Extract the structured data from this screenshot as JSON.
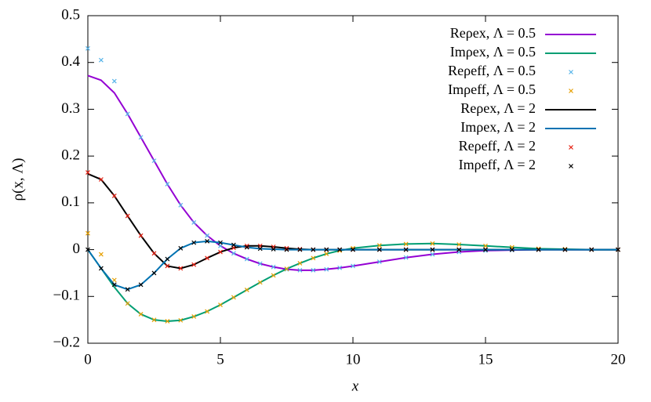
{
  "chart_data": {
    "type": "line",
    "xlabel": "x",
    "ylabel": "ρ(x, Λ)",
    "xlim": [
      0,
      20
    ],
    "ylim": [
      -0.2,
      0.5
    ],
    "xticks": [
      0,
      5,
      10,
      15,
      20
    ],
    "yticks": [
      {
        "value": -0.2,
        "label": "−0.2"
      },
      {
        "value": -0.1,
        "label": "−0.1"
      },
      0,
      0.1,
      0.2,
      0.3,
      0.4,
      0.5
    ],
    "legend": "top-right",
    "x": [
      0,
      0.5,
      1,
      1.5,
      2,
      2.5,
      3,
      3.5,
      4,
      4.5,
      5,
      5.5,
      6,
      6.5,
      7,
      7.5,
      8,
      8.5,
      9,
      9.5,
      10,
      11,
      12,
      13,
      14,
      15,
      16,
      17,
      18,
      19,
      20
    ],
    "series": [
      {
        "name": "Reρex, Λ = 0.5",
        "color": "#9400d3",
        "style": "line",
        "values": [
          0.372,
          0.362,
          0.335,
          0.29,
          0.24,
          0.19,
          0.14,
          0.095,
          0.058,
          0.03,
          0.008,
          -0.008,
          -0.02,
          -0.03,
          -0.037,
          -0.042,
          -0.044,
          -0.044,
          -0.042,
          -0.039,
          -0.035,
          -0.026,
          -0.017,
          -0.01,
          -0.005,
          -0.002,
          -0.001,
          0,
          0,
          0,
          0
        ]
      },
      {
        "name": "Imρex, Λ = 0.5",
        "color": "#009e73",
        "style": "line",
        "values": [
          0,
          -0.04,
          -0.08,
          -0.115,
          -0.138,
          -0.15,
          -0.153,
          -0.151,
          -0.143,
          -0.132,
          -0.118,
          -0.102,
          -0.086,
          -0.07,
          -0.055,
          -0.041,
          -0.029,
          -0.018,
          -0.009,
          -0.002,
          0.003,
          0.009,
          0.012,
          0.013,
          0.011,
          0.008,
          0.005,
          0.002,
          0.001,
          0,
          0
        ]
      },
      {
        "name": "Reρeff, Λ = 0.5",
        "color": "#56b4e9",
        "style": "points",
        "values": [
          0.43,
          0.405,
          0.36,
          0.29,
          0.24,
          0.19,
          0.14,
          0.095,
          0.058,
          0.03,
          0.008,
          -0.008,
          -0.02,
          -0.03,
          -0.037,
          -0.042,
          -0.044,
          -0.044,
          -0.042,
          -0.039,
          -0.035,
          -0.026,
          -0.017,
          -0.01,
          -0.005,
          -0.002,
          -0.001,
          0,
          0,
          0,
          0
        ]
      },
      {
        "name": "Imρeff, Λ = 0.5",
        "color": "#e69f00",
        "style": "points",
        "values": [
          0.035,
          -0.01,
          -0.065,
          -0.115,
          -0.138,
          -0.15,
          -0.153,
          -0.151,
          -0.143,
          -0.132,
          -0.118,
          -0.102,
          -0.086,
          -0.07,
          -0.055,
          -0.041,
          -0.029,
          -0.018,
          -0.009,
          -0.002,
          0.003,
          0.009,
          0.012,
          0.013,
          0.011,
          0.008,
          0.005,
          0.002,
          0.001,
          0,
          0
        ]
      },
      {
        "name": "Reρex, Λ = 2",
        "color": "#000000",
        "style": "line",
        "values": [
          0.162,
          0.15,
          0.115,
          0.072,
          0.03,
          -0.008,
          -0.035,
          -0.04,
          -0.032,
          -0.018,
          -0.005,
          0.004,
          0.008,
          0.008,
          0.006,
          0.003,
          0.001,
          0,
          0,
          0,
          0,
          0,
          0,
          0,
          0,
          0,
          0,
          0,
          0,
          0,
          0
        ]
      },
      {
        "name": "Imρex, Λ = 2",
        "color": "#0072b2",
        "style": "line",
        "values": [
          0,
          -0.04,
          -0.075,
          -0.085,
          -0.075,
          -0.05,
          -0.02,
          0.003,
          0.015,
          0.018,
          0.015,
          0.01,
          0.005,
          0.002,
          0.001,
          0,
          0,
          0,
          0,
          0,
          0,
          0,
          0,
          0,
          0,
          0,
          0,
          0,
          0,
          0,
          0
        ]
      },
      {
        "name": "Reρeff, Λ = 2",
        "color": "#e51e10",
        "style": "points",
        "values": [
          0.165,
          0.15,
          0.115,
          0.072,
          0.03,
          -0.008,
          -0.035,
          -0.04,
          -0.032,
          -0.018,
          -0.005,
          0.004,
          0.008,
          0.008,
          0.006,
          0.003,
          0.001,
          0,
          0,
          0,
          0,
          0,
          0,
          0,
          0,
          0,
          0,
          0,
          0,
          0,
          0
        ]
      },
      {
        "name": "Imρeff, Λ = 2",
        "color": "#000000",
        "style": "points",
        "values": [
          0,
          -0.04,
          -0.075,
          -0.085,
          -0.075,
          -0.05,
          -0.02,
          0.003,
          0.015,
          0.018,
          0.015,
          0.01,
          0.005,
          0.002,
          0.001,
          0,
          0,
          0,
          0,
          0,
          0,
          0,
          0,
          0,
          0,
          0,
          0,
          0,
          0,
          0,
          0
        ]
      }
    ]
  }
}
